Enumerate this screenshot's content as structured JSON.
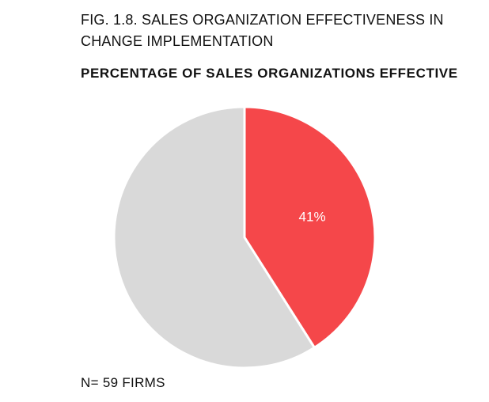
{
  "figure": {
    "title": "FIG. 1.8. SALES ORGANIZATION EFFECTIVENESS IN CHANGE IMPLEMENTATION",
    "note": "N= 59 FIRMS"
  },
  "chart_data": {
    "type": "pie",
    "title": "PERCENTAGE OF SALES ORGANIZATIONS EFFECTIVE",
    "legend": "none",
    "slices": [
      {
        "value": 41,
        "label": "41%",
        "color": "#f5474a"
      },
      {
        "value": 59,
        "label": "",
        "color": "#d9d9d9"
      }
    ]
  }
}
